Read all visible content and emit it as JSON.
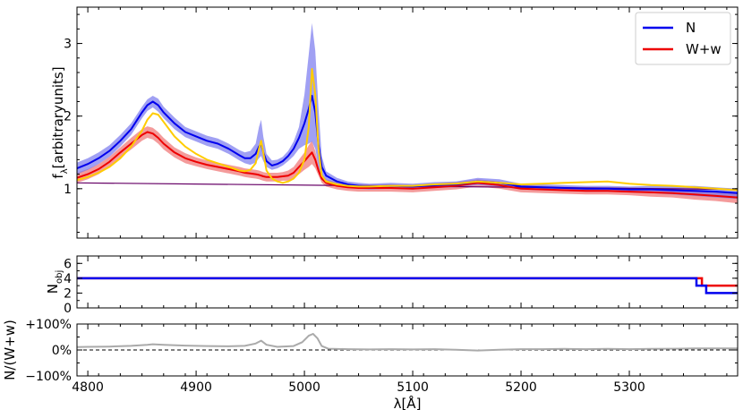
{
  "chart_data": [
    {
      "panel": "spectrum",
      "type": "line",
      "ylabel": "f_λ[arbitraryunits]",
      "ylabel_main": "f",
      "ylabel_sub": "λ",
      "ylabel_rest": "[arbitraryunits]",
      "xlim": [
        4790,
        5400
      ],
      "ylim": [
        0.32,
        3.5
      ],
      "yticks": [
        1,
        2,
        3
      ],
      "ytick_labels": [
        "1",
        "2",
        "3"
      ],
      "legend_placement": "top-right",
      "colors": {
        "N": "#0000ee",
        "W+w": "#ee0000",
        "model": "#ffcc00",
        "continuum": "#660066",
        "N_band": "#7777ee",
        "W_band": "#f07070"
      },
      "series": [
        {
          "name": "N",
          "x": [
            4790,
            4800,
            4810,
            4820,
            4830,
            4840,
            4850,
            4855,
            4860,
            4865,
            4870,
            4880,
            4890,
            4900,
            4910,
            4920,
            4930,
            4940,
            4945,
            4950,
            4955,
            4958,
            4960,
            4962,
            4965,
            4970,
            4975,
            4980,
            4985,
            4990,
            4995,
            5000,
            5004,
            5007,
            5010,
            5013,
            5016,
            5020,
            5030,
            5040,
            5050,
            5060,
            5080,
            5100,
            5120,
            5140,
            5160,
            5180,
            5200,
            5220,
            5240,
            5260,
            5280,
            5300,
            5320,
            5340,
            5360,
            5380,
            5400
          ],
          "y": [
            1.28,
            1.34,
            1.42,
            1.52,
            1.66,
            1.82,
            2.05,
            2.15,
            2.2,
            2.15,
            2.05,
            1.9,
            1.78,
            1.72,
            1.66,
            1.62,
            1.55,
            1.46,
            1.42,
            1.42,
            1.48,
            1.58,
            1.62,
            1.5,
            1.38,
            1.32,
            1.34,
            1.38,
            1.45,
            1.55,
            1.7,
            1.9,
            2.1,
            2.28,
            2.05,
            1.6,
            1.3,
            1.18,
            1.1,
            1.06,
            1.04,
            1.03,
            1.04,
            1.03,
            1.05,
            1.06,
            1.1,
            1.08,
            1.03,
            1.02,
            1.01,
            1.0,
            1.0,
            0.99,
            0.99,
            0.98,
            0.97,
            0.96,
            0.94
          ],
          "band_upper": [
            1.36,
            1.42,
            1.5,
            1.6,
            1.74,
            1.9,
            2.13,
            2.23,
            2.28,
            2.24,
            2.13,
            1.98,
            1.85,
            1.79,
            1.73,
            1.69,
            1.62,
            1.53,
            1.5,
            1.52,
            1.62,
            1.85,
            1.95,
            1.72,
            1.48,
            1.39,
            1.4,
            1.44,
            1.52,
            1.65,
            1.85,
            2.3,
            2.85,
            3.28,
            2.9,
            2.1,
            1.45,
            1.24,
            1.15,
            1.1,
            1.08,
            1.07,
            1.08,
            1.07,
            1.09,
            1.1,
            1.15,
            1.13,
            1.07,
            1.06,
            1.05,
            1.04,
            1.04,
            1.03,
            1.04,
            1.04,
            1.04,
            1.02,
            1.0
          ],
          "band_lower": [
            1.2,
            1.26,
            1.34,
            1.44,
            1.58,
            1.74,
            1.97,
            2.07,
            2.12,
            2.06,
            1.97,
            1.82,
            1.71,
            1.65,
            1.59,
            1.55,
            1.48,
            1.39,
            1.35,
            1.33,
            1.36,
            1.42,
            1.45,
            1.38,
            1.3,
            1.26,
            1.28,
            1.32,
            1.38,
            1.45,
            1.55,
            1.6,
            1.62,
            1.65,
            1.55,
            1.3,
            1.18,
            1.12,
            1.05,
            1.02,
            1.0,
            0.99,
            1.0,
            0.99,
            1.01,
            1.02,
            1.05,
            1.03,
            0.99,
            0.98,
            0.97,
            0.96,
            0.96,
            0.95,
            0.94,
            0.92,
            0.9,
            0.88,
            0.86
          ]
        },
        {
          "name": "W+w",
          "x": [
            4790,
            4800,
            4810,
            4820,
            4830,
            4840,
            4850,
            4855,
            4860,
            4865,
            4870,
            4880,
            4890,
            4900,
            4910,
            4920,
            4930,
            4940,
            4945,
            4950,
            4955,
            4958,
            4960,
            4962,
            4965,
            4970,
            4975,
            4980,
            4985,
            4990,
            4995,
            5000,
            5004,
            5007,
            5010,
            5013,
            5016,
            5020,
            5030,
            5040,
            5050,
            5060,
            5080,
            5100,
            5120,
            5140,
            5160,
            5180,
            5200,
            5220,
            5240,
            5260,
            5280,
            5300,
            5320,
            5340,
            5360,
            5380,
            5400
          ],
          "y": [
            1.15,
            1.2,
            1.27,
            1.37,
            1.5,
            1.62,
            1.74,
            1.78,
            1.76,
            1.7,
            1.62,
            1.5,
            1.42,
            1.37,
            1.33,
            1.3,
            1.27,
            1.24,
            1.22,
            1.21,
            1.2,
            1.19,
            1.18,
            1.17,
            1.16,
            1.16,
            1.16,
            1.17,
            1.18,
            1.22,
            1.3,
            1.38,
            1.45,
            1.5,
            1.4,
            1.25,
            1.14,
            1.08,
            1.04,
            1.02,
            1.01,
            1.01,
            1.01,
            1.0,
            1.02,
            1.04,
            1.08,
            1.05,
            1.0,
            0.99,
            0.98,
            0.97,
            0.97,
            0.96,
            0.95,
            0.94,
            0.92,
            0.9,
            0.88
          ],
          "band_upper": [
            1.22,
            1.27,
            1.34,
            1.44,
            1.57,
            1.7,
            1.82,
            1.86,
            1.84,
            1.78,
            1.7,
            1.57,
            1.49,
            1.43,
            1.39,
            1.36,
            1.33,
            1.3,
            1.28,
            1.27,
            1.26,
            1.25,
            1.24,
            1.23,
            1.22,
            1.22,
            1.22,
            1.23,
            1.25,
            1.3,
            1.4,
            1.5,
            1.6,
            1.66,
            1.52,
            1.32,
            1.2,
            1.13,
            1.09,
            1.07,
            1.06,
            1.06,
            1.06,
            1.05,
            1.07,
            1.09,
            1.13,
            1.1,
            1.05,
            1.04,
            1.03,
            1.02,
            1.02,
            1.01,
            1.01,
            1.0,
            0.99,
            0.97,
            0.95
          ],
          "band_lower": [
            1.08,
            1.13,
            1.2,
            1.3,
            1.43,
            1.54,
            1.66,
            1.7,
            1.68,
            1.62,
            1.54,
            1.43,
            1.35,
            1.31,
            1.27,
            1.24,
            1.21,
            1.18,
            1.16,
            1.15,
            1.14,
            1.13,
            1.12,
            1.11,
            1.1,
            1.1,
            1.1,
            1.11,
            1.11,
            1.14,
            1.2,
            1.26,
            1.3,
            1.34,
            1.28,
            1.18,
            1.08,
            1.03,
            0.99,
            0.97,
            0.96,
            0.96,
            0.96,
            0.95,
            0.97,
            0.99,
            1.03,
            1.0,
            0.95,
            0.94,
            0.93,
            0.92,
            0.92,
            0.91,
            0.89,
            0.88,
            0.85,
            0.83,
            0.8
          ]
        },
        {
          "name": "",
          "role": "model",
          "x": [
            4790,
            4800,
            4810,
            4820,
            4830,
            4840,
            4850,
            4855,
            4860,
            4865,
            4870,
            4880,
            4890,
            4900,
            4910,
            4920,
            4930,
            4940,
            4945,
            4950,
            4955,
            4958,
            4960,
            4962,
            4965,
            4970,
            4975,
            4980,
            4985,
            4990,
            4995,
            5000,
            5004,
            5007,
            5010,
            5013,
            5016,
            5020,
            5030,
            5040,
            5050,
            5060,
            5080,
            5100,
            5120,
            5140,
            5160,
            5180,
            5200,
            5220,
            5240,
            5260,
            5280,
            5300,
            5320,
            5340,
            5360,
            5380,
            5400
          ],
          "y": [
            1.12,
            1.16,
            1.22,
            1.3,
            1.42,
            1.58,
            1.8,
            1.95,
            2.04,
            2.02,
            1.92,
            1.72,
            1.58,
            1.48,
            1.4,
            1.35,
            1.3,
            1.25,
            1.24,
            1.26,
            1.35,
            1.55,
            1.66,
            1.5,
            1.25,
            1.14,
            1.1,
            1.08,
            1.1,
            1.14,
            1.22,
            1.4,
            1.85,
            2.65,
            2.3,
            1.55,
            1.18,
            1.1,
            1.06,
            1.04,
            1.03,
            1.03,
            1.04,
            1.04,
            1.06,
            1.07,
            1.1,
            1.08,
            1.06,
            1.07,
            1.08,
            1.09,
            1.1,
            1.07,
            1.05,
            1.04,
            1.02,
            1.0,
            0.98
          ]
        },
        {
          "name": "",
          "role": "continuum",
          "x": [
            4790,
            5400
          ],
          "y": [
            1.08,
            0.99
          ]
        }
      ]
    },
    {
      "panel": "count",
      "type": "line",
      "ylabel": "N_obj",
      "ylabel_main": "N",
      "ylabel_sub": "obj",
      "xlim": [
        4790,
        5400
      ],
      "ylim": [
        0,
        7
      ],
      "yticks": [
        0,
        2,
        4,
        6
      ],
      "ytick_labels": [
        "0",
        "2",
        "4",
        "6"
      ],
      "series": [
        {
          "name": "W+w",
          "x": [
            4790,
            5367,
            5367,
            5400
          ],
          "y": [
            4,
            4,
            3,
            3
          ]
        },
        {
          "name": "N",
          "x": [
            4790,
            5362,
            5362,
            5371,
            5371,
            5400
          ],
          "y": [
            4,
            4,
            3,
            3,
            2,
            2
          ]
        }
      ]
    },
    {
      "panel": "ratio",
      "type": "line",
      "ylabel": "N/(W+w)",
      "xlabel": "λ[Å]",
      "xlim": [
        4790,
        5400
      ],
      "ylim": [
        -1.0,
        1.0
      ],
      "yticks": [
        1.0,
        0.0,
        -1.0
      ],
      "ytick_labels": [
        "+100%",
        "0%",
        "−100%"
      ],
      "xticks": [
        4800,
        4900,
        5000,
        5100,
        5200,
        5300
      ],
      "xtick_labels": [
        "4800",
        "4900",
        "5000",
        "5100",
        "5200",
        "5300"
      ],
      "reference_line": 0,
      "series": [
        {
          "name": "",
          "color": "#aaaaaa",
          "x": [
            4790,
            4800,
            4820,
            4840,
            4855,
            4860,
            4870,
            4890,
            4910,
            4930,
            4945,
            4955,
            4960,
            4965,
            4975,
            4990,
            4998,
            5004,
            5008,
            5012,
            5016,
            5022,
            5040,
            5060,
            5080,
            5100,
            5120,
            5140,
            5160,
            5180,
            5200,
            5220,
            5240,
            5260,
            5280,
            5300,
            5320,
            5340,
            5360,
            5380,
            5400
          ],
          "y": [
            0.11,
            0.12,
            0.13,
            0.16,
            0.2,
            0.22,
            0.2,
            0.17,
            0.15,
            0.14,
            0.16,
            0.25,
            0.36,
            0.2,
            0.12,
            0.15,
            0.3,
            0.55,
            0.62,
            0.45,
            0.15,
            0.05,
            0.03,
            0.02,
            0.03,
            0.02,
            0.03,
            0.01,
            -0.02,
            0.01,
            0.03,
            0.03,
            0.04,
            0.03,
            0.04,
            0.03,
            0.04,
            0.05,
            0.06,
            0.06,
            0.06
          ]
        }
      ]
    }
  ]
}
